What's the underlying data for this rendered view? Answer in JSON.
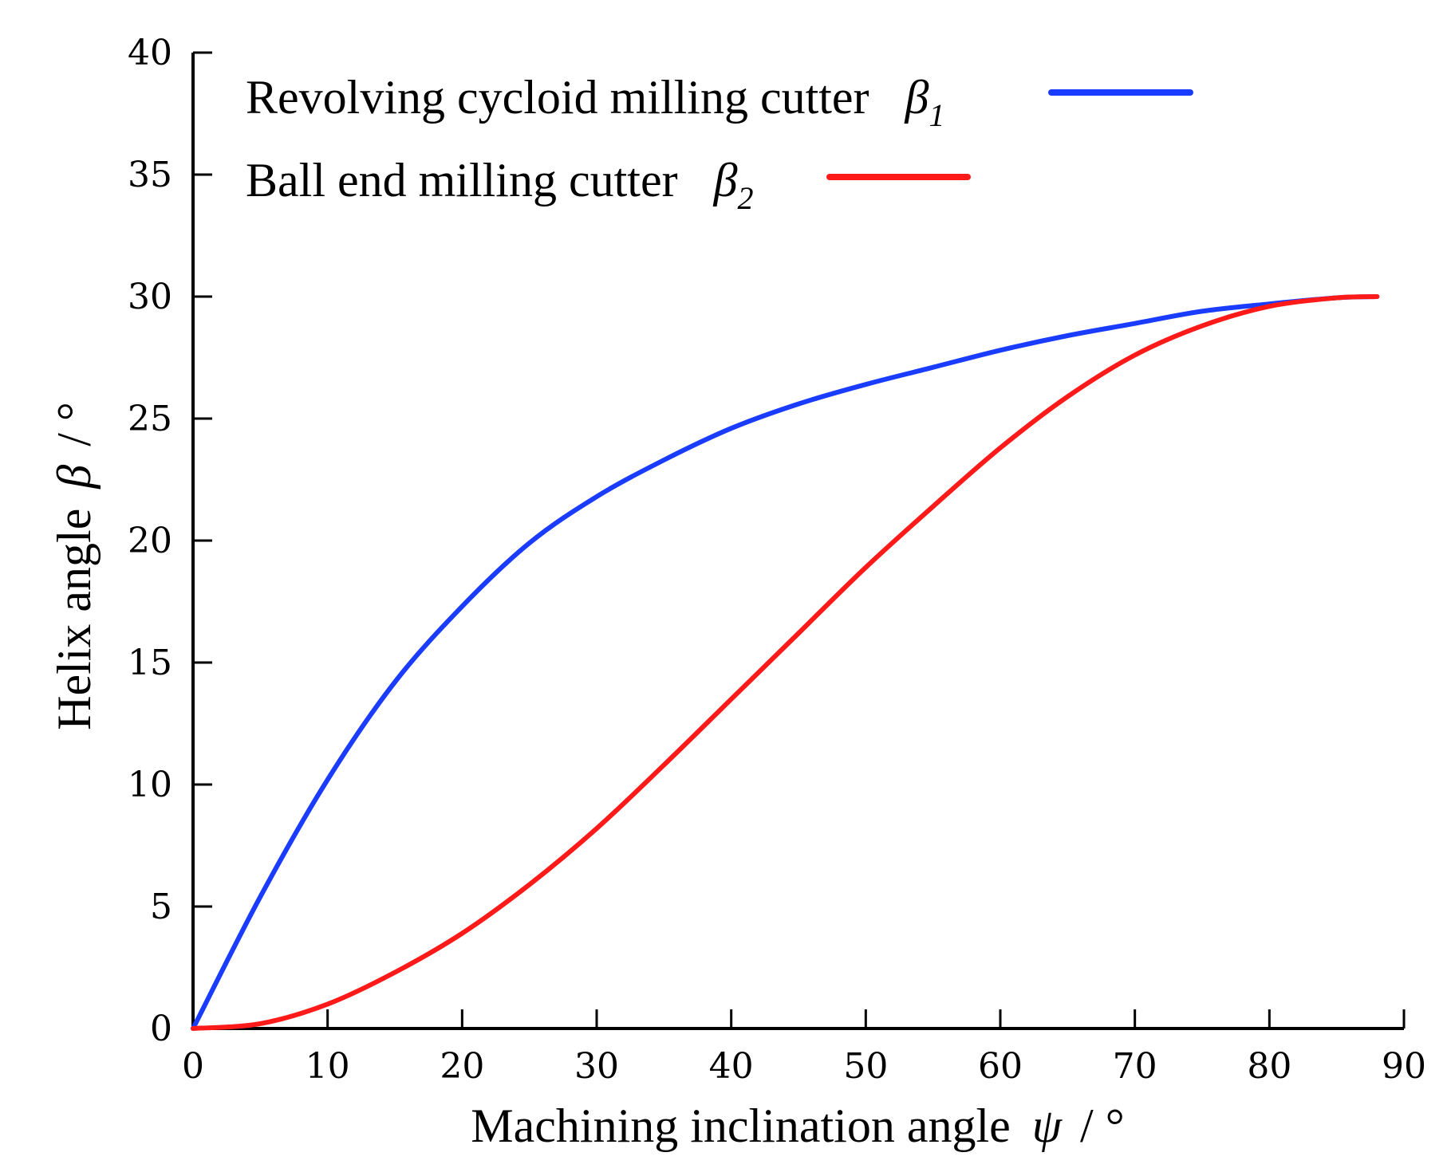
{
  "chart_data": {
    "type": "line",
    "xlabel": {
      "text": "Machining inclination angle",
      "symbol": "ψ",
      "unit": "/ °"
    },
    "ylabel": {
      "text": "Helix angle",
      "symbol": "β",
      "unit": "/ °"
    },
    "xlim": [
      0,
      90
    ],
    "ylim": [
      0,
      40
    ],
    "xticks": [
      0,
      10,
      20,
      30,
      40,
      50,
      60,
      70,
      80,
      90
    ],
    "yticks": [
      0,
      5,
      10,
      15,
      20,
      25,
      30,
      35,
      40
    ],
    "grid": false,
    "legend_position": "top-left",
    "x": [
      0,
      5,
      10,
      15,
      20,
      25,
      30,
      35,
      40,
      45,
      50,
      55,
      60,
      65,
      70,
      75,
      80,
      85,
      88
    ],
    "series": [
      {
        "name": "Revolving cycloid milling cutter",
        "symbol": "β",
        "subscript": "1",
        "color": "#1a3cff",
        "values": [
          0,
          5.4,
          10.2,
          14.2,
          17.3,
          19.9,
          21.8,
          23.3,
          24.6,
          25.6,
          26.4,
          27.1,
          27.8,
          28.4,
          28.9,
          29.4,
          29.7,
          29.95,
          30.0
        ]
      },
      {
        "name": "Ball end milling cutter",
        "symbol": "β",
        "subscript": "2",
        "color": "#ff1a1a",
        "values": [
          0,
          0.2,
          1.0,
          2.3,
          3.9,
          5.9,
          8.2,
          10.8,
          13.5,
          16.2,
          18.9,
          21.4,
          23.8,
          25.9,
          27.6,
          28.8,
          29.6,
          29.95,
          30.0
        ]
      }
    ]
  }
}
